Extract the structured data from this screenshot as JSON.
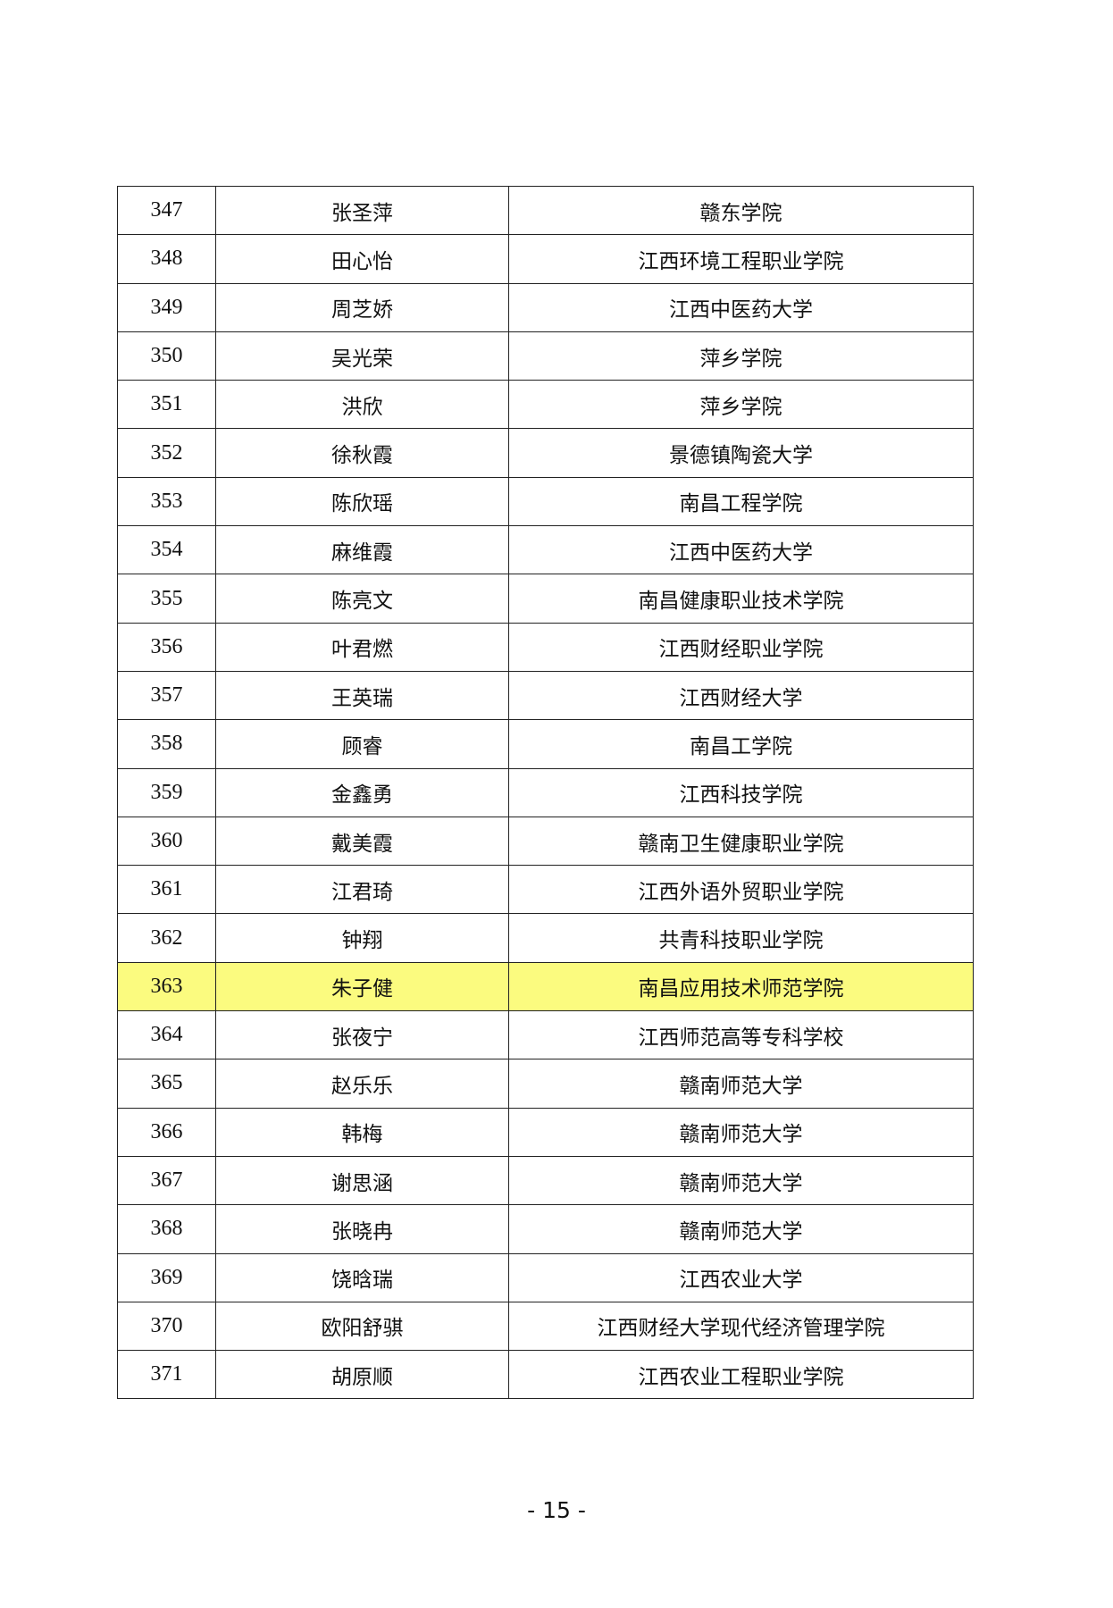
{
  "table": {
    "rows": [
      {
        "no": "347",
        "name": "张圣萍",
        "school": "赣东学院"
      },
      {
        "no": "348",
        "name": "田心怡",
        "school": "江西环境工程职业学院"
      },
      {
        "no": "349",
        "name": "周芝娇",
        "school": "江西中医药大学"
      },
      {
        "no": "350",
        "name": "吴光荣",
        "school": "萍乡学院"
      },
      {
        "no": "351",
        "name": "洪欣",
        "school": "萍乡学院"
      },
      {
        "no": "352",
        "name": "徐秋霞",
        "school": "景德镇陶瓷大学"
      },
      {
        "no": "353",
        "name": "陈欣瑶",
        "school": "南昌工程学院"
      },
      {
        "no": "354",
        "name": "麻维霞",
        "school": "江西中医药大学"
      },
      {
        "no": "355",
        "name": "陈亮文",
        "school": "南昌健康职业技术学院"
      },
      {
        "no": "356",
        "name": "叶君燃",
        "school": "江西财经职业学院"
      },
      {
        "no": "357",
        "name": "王英瑞",
        "school": "江西财经大学"
      },
      {
        "no": "358",
        "name": "顾睿",
        "school": "南昌工学院"
      },
      {
        "no": "359",
        "name": "金鑫勇",
        "school": "江西科技学院"
      },
      {
        "no": "360",
        "name": "戴美霞",
        "school": "赣南卫生健康职业学院"
      },
      {
        "no": "361",
        "name": "江君琦",
        "school": "江西外语外贸职业学院"
      },
      {
        "no": "362",
        "name": "钟翔",
        "school": "共青科技职业学院"
      },
      {
        "no": "363",
        "name": "朱子健",
        "school": "南昌应用技术师范学院",
        "highlighted": true
      },
      {
        "no": "364",
        "name": "张夜宁",
        "school": "江西师范高等专科学校"
      },
      {
        "no": "365",
        "name": "赵乐乐",
        "school": "赣南师范大学"
      },
      {
        "no": "366",
        "name": "韩梅",
        "school": "赣南师范大学"
      },
      {
        "no": "367",
        "name": "谢思涵",
        "school": "赣南师范大学"
      },
      {
        "no": "368",
        "name": "张晓冉",
        "school": "赣南师范大学"
      },
      {
        "no": "369",
        "name": "饶晗瑞",
        "school": "江西农业大学"
      },
      {
        "no": "370",
        "name": "欧阳舒骐",
        "school": "江西财经大学现代经济管理学院"
      },
      {
        "no": "371",
        "name": "胡原顺",
        "school": "江西农业工程职业学院"
      }
    ],
    "highlight_color": "#fbfb7f"
  },
  "footer": {
    "page_number": "- 15 -"
  }
}
